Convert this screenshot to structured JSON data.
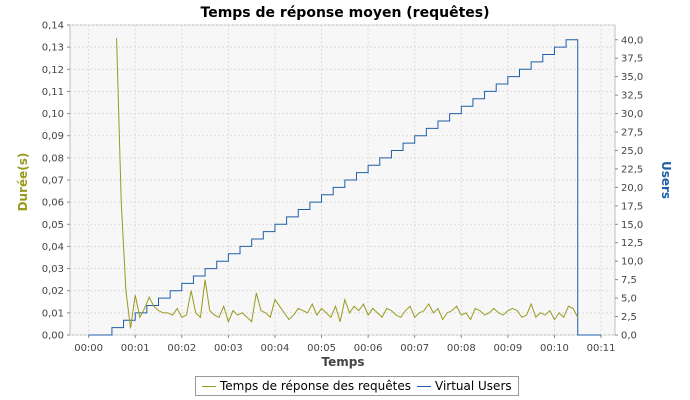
{
  "chart_data": {
    "type": "line",
    "title": "Temps de réponse moyen (requêtes)",
    "xlabel": "Temps",
    "ylabel_left": "Durée(s)",
    "ylabel_right": "Users",
    "x_ticks": [
      "00:00",
      "00:01",
      "00:02",
      "00:03",
      "00:04",
      "00:05",
      "00:06",
      "00:07",
      "00:08",
      "00:09",
      "00:10",
      "00:11"
    ],
    "xlim_minutes": [
      -0.4,
      11.3
    ],
    "y_left_ticks": [
      "0,00",
      "0,01",
      "0,02",
      "0,03",
      "0,04",
      "0,05",
      "0,06",
      "0,07",
      "0,08",
      "0,09",
      "0,10",
      "0,11",
      "0,12",
      "0,13",
      "0,14"
    ],
    "y_left_lim": [
      0,
      0.14
    ],
    "y_right_ticks": [
      "0,0",
      "2,5",
      "5,0",
      "7,5",
      "10,0",
      "12,5",
      "15,0",
      "17,5",
      "20,0",
      "22,5",
      "25,0",
      "27,5",
      "30,0",
      "32,5",
      "35,0",
      "37,5",
      "40,0"
    ],
    "y_right_lim": [
      0,
      42
    ],
    "grid": true,
    "legend_placement": "bottom",
    "series": [
      {
        "name": "Temps de réponse des requêtes",
        "axis": "left",
        "color": "#9a9a1f",
        "x": [
          0.6,
          0.7,
          0.8,
          0.9,
          1.0,
          1.1,
          1.2,
          1.3,
          1.4,
          1.5,
          1.6,
          1.7,
          1.8,
          1.9,
          2.0,
          2.1,
          2.2,
          2.3,
          2.4,
          2.5,
          2.6,
          2.7,
          2.8,
          2.9,
          3.0,
          3.1,
          3.2,
          3.3,
          3.4,
          3.5,
          3.6,
          3.7,
          3.8,
          3.9,
          4.0,
          4.1,
          4.2,
          4.3,
          4.4,
          4.5,
          4.6,
          4.7,
          4.8,
          4.9,
          5.0,
          5.1,
          5.2,
          5.3,
          5.4,
          5.5,
          5.6,
          5.7,
          5.8,
          5.9,
          6.0,
          6.1,
          6.2,
          6.3,
          6.4,
          6.5,
          6.6,
          6.7,
          6.8,
          6.9,
          7.0,
          7.1,
          7.2,
          7.3,
          7.4,
          7.5,
          7.6,
          7.7,
          7.8,
          7.9,
          8.0,
          8.1,
          8.2,
          8.3,
          8.4,
          8.5,
          8.6,
          8.7,
          8.8,
          8.9,
          9.0,
          9.1,
          9.2,
          9.3,
          9.4,
          9.5,
          9.6,
          9.7,
          9.8,
          9.9,
          10.0,
          10.1,
          10.2,
          10.3,
          10.4,
          10.5
        ],
        "values": [
          0.134,
          0.06,
          0.02,
          0.003,
          0.018,
          0.008,
          0.012,
          0.017,
          0.013,
          0.011,
          0.01,
          0.01,
          0.009,
          0.012,
          0.008,
          0.009,
          0.02,
          0.01,
          0.008,
          0.025,
          0.011,
          0.009,
          0.008,
          0.013,
          0.006,
          0.011,
          0.009,
          0.01,
          0.008,
          0.006,
          0.019,
          0.011,
          0.01,
          0.008,
          0.016,
          0.013,
          0.01,
          0.007,
          0.009,
          0.012,
          0.011,
          0.01,
          0.014,
          0.009,
          0.012,
          0.01,
          0.008,
          0.013,
          0.006,
          0.016,
          0.01,
          0.013,
          0.011,
          0.014,
          0.009,
          0.012,
          0.01,
          0.008,
          0.012,
          0.011,
          0.009,
          0.008,
          0.011,
          0.013,
          0.008,
          0.01,
          0.011,
          0.014,
          0.01,
          0.012,
          0.007,
          0.01,
          0.011,
          0.013,
          0.009,
          0.01,
          0.007,
          0.012,
          0.011,
          0.009,
          0.01,
          0.012,
          0.01,
          0.009,
          0.011,
          0.012,
          0.011,
          0.008,
          0.009,
          0.014,
          0.008,
          0.01,
          0.009,
          0.011,
          0.007,
          0.01,
          0.008,
          0.013,
          0.012,
          0.008
        ]
      },
      {
        "name": "Virtual Users",
        "axis": "right",
        "color": "#1f5fa8",
        "step": true,
        "steps": [
          [
            0.0,
            0
          ],
          [
            0.5,
            1
          ],
          [
            0.75,
            2
          ],
          [
            1.0,
            3
          ],
          [
            1.25,
            4
          ],
          [
            1.5,
            5
          ],
          [
            1.75,
            6
          ],
          [
            2.0,
            7
          ],
          [
            2.25,
            8
          ],
          [
            2.5,
            9
          ],
          [
            2.75,
            10
          ],
          [
            3.0,
            11
          ],
          [
            3.25,
            12
          ],
          [
            3.5,
            13
          ],
          [
            3.75,
            14
          ],
          [
            4.0,
            15
          ],
          [
            4.25,
            16
          ],
          [
            4.5,
            17
          ],
          [
            4.75,
            18
          ],
          [
            5.0,
            19
          ],
          [
            5.25,
            20
          ],
          [
            5.5,
            21
          ],
          [
            5.75,
            22
          ],
          [
            6.0,
            23
          ],
          [
            6.25,
            24
          ],
          [
            6.5,
            25
          ],
          [
            6.75,
            26
          ],
          [
            7.0,
            27
          ],
          [
            7.25,
            28
          ],
          [
            7.5,
            29
          ],
          [
            7.75,
            30
          ],
          [
            8.0,
            31
          ],
          [
            8.25,
            32
          ],
          [
            8.5,
            33
          ],
          [
            8.75,
            34
          ],
          [
            9.0,
            35
          ],
          [
            9.25,
            36
          ],
          [
            9.5,
            37
          ],
          [
            9.75,
            38
          ],
          [
            10.0,
            39
          ],
          [
            10.25,
            40
          ],
          [
            10.5,
            0
          ],
          [
            11.0,
            0
          ]
        ]
      }
    ]
  }
}
